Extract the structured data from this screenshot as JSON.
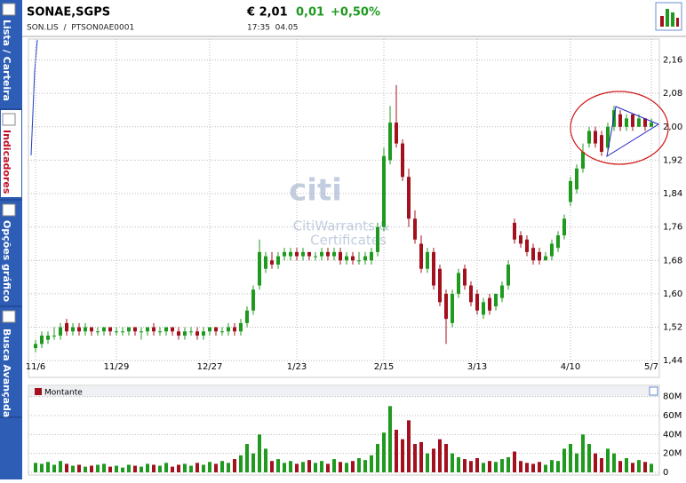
{
  "header": {
    "name": "SONAE,SGPS",
    "price": "€ 2,01",
    "change": "0,01",
    "change_pct": "+0,50%",
    "ticker": "SON.LIS  /  PTSON0AE0001",
    "time": "17:35  04.05"
  },
  "sidebar": {
    "tabs": [
      "Lista / Carteira",
      "Indicadores",
      "Opções gráfico",
      "Busca Avançada"
    ]
  },
  "watermark": {
    "logo": "citi",
    "line1": "CitiWarrants &",
    "line2": "Certificates"
  },
  "chart_data": [
    {
      "type": "candlestick",
      "up_color": "#1f9a1f",
      "down_color": "#a3101e",
      "grid": true,
      "ylim": [
        1.4,
        2.21
      ],
      "yticks": [
        {
          "value": 1.44,
          "label": "1,44"
        },
        {
          "value": 1.52,
          "label": "1,52"
        },
        {
          "value": 1.6,
          "label": "1,60"
        },
        {
          "value": 1.68,
          "label": "1,68"
        },
        {
          "value": 1.76,
          "label": "1,76"
        },
        {
          "value": 1.84,
          "label": "1,84"
        },
        {
          "value": 1.92,
          "label": "1,92"
        },
        {
          "value": 2.0,
          "label": "2,00"
        },
        {
          "value": 2.08,
          "label": "2,08"
        },
        {
          "value": 2.16,
          "label": "2,16"
        }
      ],
      "categories": [
        "11/6",
        null,
        null,
        null,
        null,
        null,
        null,
        null,
        null,
        null,
        null,
        null,
        null,
        "11/29",
        null,
        null,
        null,
        null,
        null,
        null,
        null,
        null,
        null,
        null,
        null,
        null,
        null,
        null,
        "12/27",
        null,
        null,
        null,
        null,
        null,
        null,
        null,
        null,
        null,
        null,
        null,
        null,
        null,
        "1/23",
        null,
        null,
        null,
        null,
        null,
        null,
        null,
        null,
        null,
        null,
        null,
        null,
        null,
        "2/15",
        null,
        null,
        null,
        null,
        null,
        null,
        null,
        null,
        null,
        null,
        null,
        null,
        null,
        null,
        "3/13",
        null,
        null,
        null,
        null,
        null,
        null,
        null,
        null,
        null,
        null,
        null,
        null,
        null,
        null,
        "4/10",
        null,
        null,
        null,
        null,
        null,
        null,
        null,
        null,
        null,
        null,
        null,
        null,
        "5/7"
      ],
      "open": [
        1.47,
        1.48,
        1.49,
        1.5,
        1.5,
        1.53,
        1.51,
        1.52,
        1.51,
        1.52,
        1.51,
        1.51,
        1.52,
        1.51,
        1.51,
        1.51,
        1.52,
        1.51,
        1.51,
        1.52,
        1.51,
        1.51,
        1.52,
        1.51,
        1.5,
        1.51,
        1.51,
        1.5,
        1.51,
        1.52,
        1.51,
        1.51,
        1.52,
        1.51,
        1.53,
        1.56,
        1.62,
        1.66,
        1.68,
        1.67,
        1.69,
        1.69,
        1.7,
        1.69,
        1.7,
        1.69,
        1.69,
        1.7,
        1.69,
        1.7,
        1.68,
        1.69,
        1.68,
        1.68,
        1.68,
        1.7,
        1.76,
        1.92,
        2.01,
        1.96,
        1.88,
        1.78,
        1.72,
        1.66,
        1.7,
        1.66,
        1.6,
        1.53,
        1.6,
        1.66,
        1.62,
        1.6,
        1.55,
        1.59,
        1.57,
        1.59,
        1.62,
        1.77,
        1.74,
        1.73,
        1.71,
        1.7,
        1.68,
        1.69,
        1.71,
        1.74,
        1.82,
        1.85,
        1.9,
        1.96,
        1.99,
        1.98,
        1.95,
        2.0,
        2.03,
        2.0,
        2.03,
        2.0,
        2.02,
        2.0
      ],
      "high": [
        1.49,
        1.51,
        1.51,
        1.52,
        1.53,
        1.54,
        1.53,
        1.53,
        1.53,
        1.52,
        1.52,
        1.52,
        1.52,
        1.52,
        1.52,
        1.52,
        1.52,
        1.52,
        1.52,
        1.53,
        1.52,
        1.52,
        1.52,
        1.52,
        1.52,
        1.52,
        1.52,
        1.52,
        1.52,
        1.52,
        1.52,
        1.53,
        1.53,
        1.54,
        1.57,
        1.62,
        1.73,
        1.7,
        1.7,
        1.7,
        1.71,
        1.71,
        1.71,
        1.71,
        1.7,
        1.7,
        1.71,
        1.71,
        1.71,
        1.71,
        1.7,
        1.7,
        1.7,
        1.7,
        1.71,
        1.77,
        1.95,
        2.05,
        2.1,
        1.97,
        1.9,
        1.8,
        1.74,
        1.71,
        1.71,
        1.67,
        1.61,
        1.61,
        1.66,
        1.67,
        1.63,
        1.61,
        1.59,
        1.6,
        1.6,
        1.63,
        1.68,
        1.78,
        1.75,
        1.74,
        1.72,
        1.71,
        1.7,
        1.73,
        1.75,
        1.79,
        1.88,
        1.91,
        1.96,
        2.0,
        2.0,
        1.99,
        2.01,
        2.05,
        2.04,
        2.03,
        2.03,
        2.03,
        2.02,
        2.02
      ],
      "low": [
        1.46,
        1.47,
        1.48,
        1.49,
        1.49,
        1.5,
        1.5,
        1.5,
        1.5,
        1.5,
        1.5,
        1.5,
        1.5,
        1.5,
        1.5,
        1.5,
        1.5,
        1.49,
        1.5,
        1.5,
        1.5,
        1.5,
        1.5,
        1.49,
        1.49,
        1.5,
        1.49,
        1.49,
        1.5,
        1.5,
        1.5,
        1.5,
        1.5,
        1.5,
        1.52,
        1.55,
        1.61,
        1.65,
        1.66,
        1.66,
        1.68,
        1.68,
        1.68,
        1.68,
        1.68,
        1.68,
        1.68,
        1.68,
        1.68,
        1.67,
        1.67,
        1.67,
        1.67,
        1.67,
        1.67,
        1.69,
        1.75,
        1.91,
        1.95,
        1.87,
        1.76,
        1.72,
        1.65,
        1.65,
        1.61,
        1.57,
        1.48,
        1.52,
        1.59,
        1.61,
        1.57,
        1.55,
        1.54,
        1.55,
        1.56,
        1.58,
        1.61,
        1.72,
        1.71,
        1.69,
        1.67,
        1.67,
        1.68,
        1.68,
        1.7,
        1.73,
        1.81,
        1.84,
        1.89,
        1.95,
        1.95,
        1.93,
        1.94,
        1.99,
        1.99,
        1.99,
        1.99,
        2.0,
        1.99,
        2.0
      ],
      "close": [
        1.48,
        1.5,
        1.5,
        1.5,
        1.52,
        1.51,
        1.52,
        1.51,
        1.52,
        1.51,
        1.51,
        1.52,
        1.51,
        1.51,
        1.51,
        1.52,
        1.51,
        1.51,
        1.52,
        1.51,
        1.51,
        1.52,
        1.51,
        1.5,
        1.51,
        1.51,
        1.5,
        1.51,
        1.52,
        1.51,
        1.51,
        1.52,
        1.51,
        1.53,
        1.56,
        1.61,
        1.7,
        1.69,
        1.67,
        1.69,
        1.7,
        1.7,
        1.69,
        1.7,
        1.69,
        1.69,
        1.7,
        1.69,
        1.7,
        1.68,
        1.69,
        1.68,
        1.68,
        1.69,
        1.7,
        1.76,
        1.93,
        2.01,
        1.96,
        1.88,
        1.78,
        1.73,
        1.66,
        1.7,
        1.62,
        1.58,
        1.54,
        1.6,
        1.65,
        1.62,
        1.58,
        1.56,
        1.58,
        1.56,
        1.6,
        1.62,
        1.67,
        1.73,
        1.72,
        1.7,
        1.68,
        1.68,
        1.69,
        1.72,
        1.74,
        1.78,
        1.87,
        1.9,
        1.94,
        1.99,
        1.96,
        1.94,
        2.0,
        2.04,
        2.0,
        2.02,
        2.0,
        2.02,
        2.0,
        2.01
      ]
    },
    {
      "type": "bar",
      "title": "Montante",
      "color": "#a3101e",
      "grid": true,
      "ylim": [
        0,
        91000000
      ],
      "yticks": [
        0,
        {
          "value": 20000000,
          "label": "20M"
        },
        {
          "value": 40000000,
          "label": "40M"
        },
        {
          "value": 60000000,
          "label": "60M"
        },
        {
          "value": 80000000,
          "label": "80M"
        }
      ],
      "values": [
        10000000,
        9000000,
        11000000,
        8000000,
        12000000,
        9000000,
        7000000,
        8000000,
        6000000,
        7000000,
        8000000,
        9000000,
        6000000,
        7000000,
        5000000,
        8000000,
        7000000,
        6000000,
        9000000,
        8000000,
        7000000,
        10000000,
        6000000,
        8000000,
        9000000,
        7000000,
        10000000,
        8000000,
        11000000,
        9000000,
        12000000,
        10000000,
        14000000,
        18000000,
        30000000,
        20000000,
        40000000,
        25000000,
        12000000,
        14000000,
        10000000,
        12000000,
        9000000,
        11000000,
        13000000,
        10000000,
        12000000,
        9000000,
        14000000,
        11000000,
        10000000,
        12000000,
        15000000,
        13000000,
        18000000,
        30000000,
        42000000,
        70000000,
        45000000,
        35000000,
        55000000,
        30000000,
        32000000,
        20000000,
        25000000,
        35000000,
        30000000,
        20000000,
        16000000,
        14000000,
        12000000,
        15000000,
        10000000,
        12000000,
        11000000,
        14000000,
        16000000,
        22000000,
        12000000,
        10000000,
        9000000,
        11000000,
        8000000,
        13000000,
        12000000,
        25000000,
        30000000,
        20000000,
        40000000,
        30000000,
        20000000,
        15000000,
        25000000,
        20000000,
        12000000,
        15000000,
        10000000,
        13000000,
        11000000,
        9000000
      ]
    }
  ]
}
